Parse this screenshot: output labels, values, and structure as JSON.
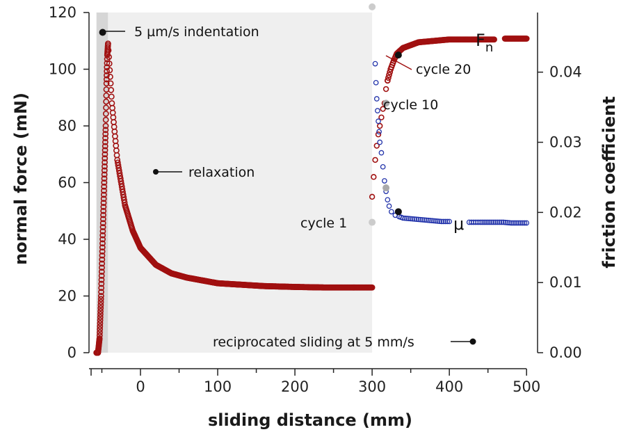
{
  "chart_data": {
    "type": "scatter",
    "x_axis": {
      "label": "sliding distance (mm)",
      "ticks": [
        "0",
        "100",
        "200",
        "300",
        "400",
        "500"
      ],
      "range": [
        -57,
        500
      ]
    },
    "y_left": {
      "label": "normal force (mN)",
      "ticks": [
        "0",
        "20",
        "40",
        "60",
        "80",
        "100",
        "120"
      ],
      "range": [
        0,
        120
      ]
    },
    "y_right": {
      "label": "friction coefficient",
      "ticks": [
        "0.00",
        "0.01",
        "0.02",
        "0.03",
        "0.04"
      ],
      "range": [
        0,
        0.0485
      ]
    },
    "shaded_regions": [
      {
        "x": [
          -57,
          -42
        ],
        "color": "#d6d6d6"
      },
      {
        "x": [
          -42,
          300
        ],
        "color": "#efefef"
      }
    ],
    "series": [
      {
        "name": "Fn",
        "axis": "left",
        "color": "#a01010",
        "indentation": {
          "x": [
            -57,
            -55,
            -53,
            -51,
            -49,
            -47,
            -45,
            -44,
            -43,
            -42
          ],
          "y": [
            0,
            0,
            5,
            20,
            40,
            60,
            80,
            95,
            105,
            109
          ]
        },
        "relaxation": {
          "x": [
            -42,
            -37,
            -30,
            -20,
            -10,
            0,
            20,
            40,
            60,
            80,
            100,
            130,
            160,
            200,
            240,
            270,
            300
          ],
          "y": [
            109,
            88,
            68,
            52,
            43,
            37,
            31,
            28,
            26.5,
            25.5,
            24.5,
            24,
            23.5,
            23.2,
            23,
            23,
            23
          ]
        },
        "sliding": {
          "x": [
            300,
            302,
            304,
            306,
            308,
            310,
            312,
            314,
            316,
            318,
            320,
            324,
            328,
            332,
            340,
            350,
            360,
            380,
            400,
            420,
            440,
            460,
            470,
            480,
            490,
            500
          ],
          "y": [
            55,
            62,
            68,
            73,
            77,
            80,
            83,
            86,
            88,
            93,
            96,
            100,
            103,
            105.5,
            107.5,
            108.5,
            109.5,
            110,
            110.5,
            110.5,
            110.5,
            110.5,
            110.8,
            110.8,
            110.8,
            110.8
          ]
        }
      },
      {
        "name": "μ",
        "axis": "right",
        "color": "#2233aa",
        "x": [
          304,
          305,
          306,
          307,
          308,
          309,
          310,
          312,
          314,
          316,
          318,
          320,
          322,
          325,
          330,
          335,
          340,
          350,
          360,
          370,
          380,
          390,
          400,
          410,
          420,
          440,
          450,
          460,
          470,
          480,
          490,
          500
        ],
        "y": [
          0.0412,
          0.0385,
          0.0362,
          0.0345,
          0.033,
          0.0315,
          0.03,
          0.0285,
          0.0265,
          0.0245,
          0.023,
          0.0218,
          0.0209,
          0.0201,
          0.0196,
          0.0194,
          0.0192,
          0.0191,
          0.019,
          0.0189,
          0.0188,
          0.0187,
          0.0187,
          0.0187,
          0.0186,
          0.0186,
          0.0186,
          0.0186,
          0.0186,
          0.0185,
          0.0185,
          0.0185
        ]
      }
    ],
    "markers": [
      {
        "x": -49,
        "axis": "left",
        "y": 113,
        "color": "#111111"
      },
      {
        "x": 334,
        "axis": "left",
        "y": 105,
        "color": "#111111"
      },
      {
        "x": 318,
        "axis": "left",
        "y": 88,
        "color": "#aaaaaa"
      },
      {
        "x": 300,
        "axis": "left",
        "y": 46,
        "color": "#cccccc"
      },
      {
        "x": 300,
        "axis": "left",
        "y": 122,
        "color": "#cccccc"
      },
      {
        "x": 334,
        "axis": "right",
        "y": 0.0201,
        "color": "#111111"
      },
      {
        "x": 318,
        "axis": "right",
        "y": 0.0235,
        "color": "#aaaaaa"
      }
    ],
    "annotations": {
      "indentation": "5 µm/s indentation",
      "relaxation": "relaxation",
      "sliding": "reciprocated sliding at 5 mm/s",
      "cycle1": "cycle 1",
      "cycle10": "cycle 10",
      "cycle20": "cycle 20",
      "fn_main": "F",
      "fn_sub": "n",
      "mu": "μ"
    }
  }
}
